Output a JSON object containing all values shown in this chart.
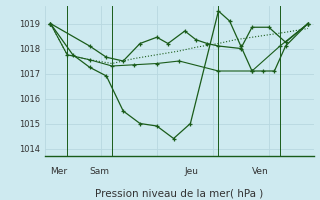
{
  "background_color": "#ceeaf0",
  "grid_color": "#b8d8e0",
  "line_color": "#1a5c1a",
  "title": "Pression niveau de la mer( hPa )",
  "ylim": [
    1013.7,
    1019.7
  ],
  "yticks": [
    1014,
    1015,
    1016,
    1017,
    1018,
    1019
  ],
  "day_labels": [
    "Mer",
    "Sam",
    "Jeu",
    "Ven"
  ],
  "day_positions": [
    0.5,
    4.0,
    12.5,
    18.5
  ],
  "vline_positions": [
    2.0,
    6.0,
    15.5,
    21.0
  ],
  "xlim": [
    0,
    24
  ],
  "series_flat_x": [
    0.5,
    2.0,
    4.0,
    6.0,
    8.0,
    10.0,
    12.0,
    13.5,
    15.5,
    17.0,
    18.5,
    20.0,
    21.5,
    23.5
  ],
  "series_flat_y": [
    1019.0,
    1017.75,
    1017.55,
    1017.4,
    1017.6,
    1017.75,
    1017.9,
    1018.05,
    1018.2,
    1018.35,
    1018.45,
    1018.55,
    1018.65,
    1018.8
  ],
  "series_main_x": [
    0.5,
    2.5,
    4.0,
    5.5,
    7.0,
    8.5,
    10.0,
    11.5,
    13.0,
    15.5,
    16.5,
    17.5,
    18.5,
    19.5,
    20.5,
    21.5,
    23.5
  ],
  "series_main_y": [
    1019.0,
    1017.75,
    1017.25,
    1016.9,
    1015.5,
    1015.0,
    1014.9,
    1014.4,
    1015.0,
    1019.5,
    1019.1,
    1018.1,
    1017.1,
    1017.1,
    1017.1,
    1018.1,
    1019.0
  ],
  "series_alt_x": [
    0.5,
    4.0,
    5.5,
    7.0,
    8.5,
    10.0,
    11.0,
    12.5,
    13.5,
    14.5,
    15.5,
    17.5,
    18.5,
    20.0,
    21.5,
    23.5
  ],
  "series_alt_y": [
    1019.0,
    1018.1,
    1017.65,
    1017.5,
    1018.2,
    1018.45,
    1018.2,
    1018.7,
    1018.35,
    1018.2,
    1018.1,
    1018.0,
    1018.85,
    1018.85,
    1018.25,
    1019.0
  ],
  "series_flat2_x": [
    0.5,
    2.0,
    4.0,
    6.0,
    8.0,
    10.0,
    12.0,
    15.5,
    18.5,
    21.0,
    23.5
  ],
  "series_flat2_y": [
    1019.0,
    1017.75,
    1017.55,
    1017.3,
    1017.35,
    1017.4,
    1017.5,
    1017.1,
    1017.1,
    1018.1,
    1019.0
  ],
  "figsize": [
    3.2,
    2.0
  ],
  "dpi": 100
}
